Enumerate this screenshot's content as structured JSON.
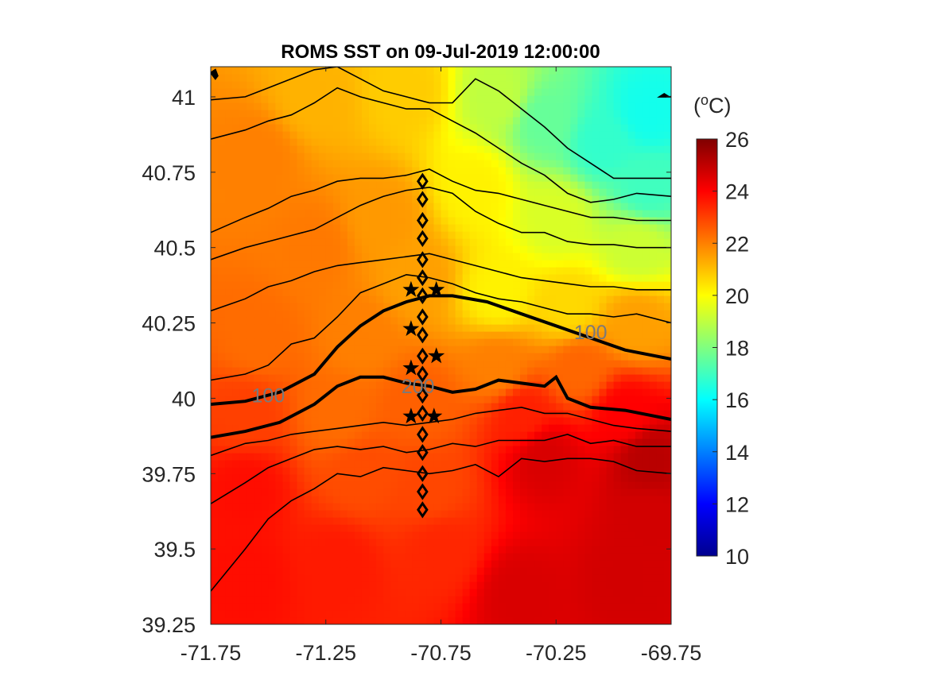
{
  "chart_data": {
    "type": "heatmap",
    "title": "ROMS SST on 09-Jul-2019 12:00:00",
    "xlabel": "",
    "ylabel": "",
    "xlim": [
      -71.75,
      -69.75
    ],
    "ylim": [
      39.25,
      41.1
    ],
    "x_ticks": [
      -71.75,
      -71.25,
      -70.75,
      -70.25,
      -69.75
    ],
    "x_tick_labels": [
      "-71.75",
      "-71.25",
      "-70.75",
      "-70.25",
      "-69.75"
    ],
    "y_ticks": [
      39.25,
      39.5,
      39.75,
      40,
      40.25,
      40.5,
      40.75,
      41
    ],
    "y_tick_labels": [
      "39.25",
      "39.5",
      "39.75",
      "40",
      "40.25",
      "40.5",
      "40.75",
      "41"
    ],
    "colorbar": {
      "label": "(oC)",
      "label_base": "(",
      "label_sup": "o",
      "label_unit": "C)",
      "range": [
        10,
        26
      ],
      "ticks": [
        10,
        12,
        14,
        16,
        18,
        20,
        22,
        24,
        26
      ],
      "tick_labels": [
        "10",
        "12",
        "14",
        "16",
        "18",
        "20",
        "22",
        "24",
        "26"
      ],
      "colormap": "jet"
    },
    "bathymetry_contours": [
      {
        "label": "100",
        "lon": [
          -71.75,
          -71.6,
          -71.45,
          -71.3,
          -71.2,
          -71.1,
          -71.0,
          -70.9,
          -70.8,
          -70.7,
          -70.55,
          -70.4,
          -70.25,
          -70.1,
          -69.95,
          -69.75
        ],
        "lat": [
          39.98,
          39.99,
          40.02,
          40.08,
          40.17,
          40.24,
          40.29,
          40.32,
          40.34,
          40.34,
          40.32,
          40.28,
          40.24,
          40.2,
          40.16,
          40.13
        ]
      },
      {
        "label": "200",
        "lon": [
          -71.75,
          -71.6,
          -71.45,
          -71.3,
          -71.2,
          -71.1,
          -71.0,
          -70.9,
          -70.8,
          -70.7,
          -70.6,
          -70.5,
          -70.4,
          -70.3,
          -70.25,
          -70.2,
          -70.1,
          -69.95,
          -69.75
        ],
        "lat": [
          39.87,
          39.89,
          39.92,
          39.98,
          40.04,
          40.07,
          40.07,
          40.05,
          40.04,
          40.02,
          40.03,
          40.06,
          40.05,
          40.04,
          40.07,
          40.0,
          39.97,
          39.96,
          39.93
        ]
      }
    ],
    "contour_labels": [
      {
        "text": "100",
        "lon": -71.5,
        "lat": 40.01
      },
      {
        "text": "200",
        "lon": -70.85,
        "lat": 40.04
      },
      {
        "text": "100",
        "lon": -70.1,
        "lat": 40.22
      }
    ],
    "other_isobaths": [
      {
        "lon": [
          -71.75,
          -71.6,
          -71.5,
          -71.4,
          -71.3,
          -71.2,
          -71.1,
          -71.0,
          -70.9,
          -70.8,
          -70.7,
          -70.6,
          -70.5,
          -70.4,
          -70.3,
          -70.2,
          -70.1,
          -70.0,
          -69.9,
          -69.75
        ],
        "lat": [
          39.36,
          39.5,
          39.6,
          39.66,
          39.7,
          39.75,
          39.74,
          39.77,
          39.76,
          39.75,
          39.76,
          39.78,
          39.74,
          39.8,
          39.79,
          39.8,
          39.8,
          39.79,
          39.76,
          39.75
        ]
      },
      {
        "lon": [
          -71.75,
          -71.6,
          -71.5,
          -71.4,
          -71.3,
          -71.2,
          -71.1,
          -71.0,
          -70.9,
          -70.8,
          -70.7,
          -70.6,
          -70.5,
          -70.4,
          -70.3,
          -70.2,
          -70.1,
          -70.0,
          -69.9,
          -69.75
        ],
        "lat": [
          39.65,
          39.72,
          39.77,
          39.8,
          39.83,
          39.84,
          39.83,
          39.84,
          39.82,
          39.83,
          39.85,
          39.84,
          39.86,
          39.86,
          39.86,
          39.88,
          39.85,
          39.86,
          39.84,
          39.84
        ]
      },
      {
        "lon": [
          -71.75,
          -71.6,
          -71.5,
          -71.4,
          -71.3,
          -71.2,
          -71.1,
          -71.0,
          -70.9,
          -70.8,
          -70.7,
          -70.6,
          -70.5,
          -70.4,
          -70.3,
          -70.2,
          -70.1,
          -70.0,
          -69.9,
          -69.75
        ],
        "lat": [
          39.81,
          39.85,
          39.86,
          39.88,
          39.89,
          39.9,
          39.91,
          39.92,
          39.91,
          39.92,
          39.93,
          39.95,
          39.96,
          39.97,
          39.95,
          39.95,
          39.93,
          39.91,
          39.9,
          39.89
        ]
      },
      {
        "lon": [
          -71.75,
          -71.6,
          -71.5,
          -71.4,
          -71.3,
          -71.2,
          -71.1,
          -71.0,
          -70.9,
          -70.8,
          -70.7,
          -70.6,
          -70.5,
          -70.4,
          -70.3,
          -70.2,
          -70.1,
          -70.0,
          -69.9,
          -69.75
        ],
        "lat": [
          40.06,
          40.08,
          40.11,
          40.18,
          40.2,
          40.27,
          40.35,
          40.38,
          40.41,
          40.4,
          40.38,
          40.35,
          40.33,
          40.32,
          40.3,
          40.28,
          40.28,
          40.27,
          40.28,
          40.25
        ]
      },
      {
        "lon": [
          -71.75,
          -71.6,
          -71.5,
          -71.4,
          -71.3,
          -71.2,
          -71.1,
          -71.0,
          -70.9,
          -70.8,
          -70.7,
          -70.6,
          -70.5,
          -70.4,
          -70.3,
          -70.2,
          -70.1,
          -70.0,
          -69.9,
          -69.75
        ],
        "lat": [
          40.29,
          40.33,
          40.37,
          40.39,
          40.42,
          40.44,
          40.45,
          40.46,
          40.47,
          40.48,
          40.46,
          40.44,
          40.42,
          40.4,
          40.39,
          40.38,
          40.37,
          40.37,
          40.36,
          40.36
        ]
      },
      {
        "lon": [
          -71.75,
          -71.6,
          -71.5,
          -71.4,
          -71.3,
          -71.2,
          -71.1,
          -71.0,
          -70.9,
          -70.8,
          -70.7,
          -70.6,
          -70.5,
          -70.4,
          -70.3,
          -70.2,
          -70.1,
          -70.0,
          -69.9,
          -69.75
        ],
        "lat": [
          40.46,
          40.5,
          40.52,
          40.54,
          40.56,
          40.6,
          40.64,
          40.67,
          40.69,
          40.7,
          40.68,
          40.62,
          40.58,
          40.55,
          40.55,
          40.52,
          40.51,
          40.51,
          40.5,
          40.5
        ]
      },
      {
        "lon": [
          -71.75,
          -71.6,
          -71.5,
          -71.4,
          -71.3,
          -71.2,
          -71.1,
          -71.0,
          -70.9,
          -70.8,
          -70.7,
          -70.6,
          -70.5,
          -70.4,
          -70.3,
          -70.2,
          -70.1,
          -70.0,
          -69.9,
          -69.75
        ],
        "lat": [
          40.55,
          40.6,
          40.63,
          40.67,
          40.69,
          40.72,
          40.73,
          40.73,
          40.74,
          40.76,
          40.72,
          40.69,
          40.68,
          40.66,
          40.64,
          40.62,
          40.6,
          40.6,
          40.59,
          40.59
        ]
      },
      {
        "lon": [
          -71.75,
          -71.6,
          -71.5,
          -71.4,
          -71.3,
          -71.2,
          -71.1,
          -71.0,
          -70.9,
          -70.8,
          -70.7,
          -70.6,
          -70.5,
          -70.4,
          -70.3,
          -70.2,
          -70.1,
          -70.0,
          -69.9,
          -69.75
        ],
        "lat": [
          40.86,
          40.89,
          40.92,
          40.94,
          40.98,
          41.03,
          41.0,
          40.98,
          40.96,
          40.96,
          40.92,
          40.88,
          40.83,
          40.78,
          40.74,
          40.68,
          40.65,
          40.66,
          40.68,
          40.67
        ]
      },
      {
        "lon": [
          -71.75,
          -71.6,
          -71.5,
          -71.4,
          -71.3,
          -71.2,
          -71.1,
          -71.0,
          -70.9,
          -70.8,
          -70.7,
          -70.6,
          -70.5,
          -70.4,
          -70.3,
          -70.2,
          -70.1,
          -70.0,
          -69.9,
          -69.75
        ],
        "lat": [
          40.99,
          41.0,
          41.03,
          41.06,
          41.09,
          41.1,
          41.06,
          41.02,
          41.0,
          40.98,
          40.98,
          41.06,
          41.02,
          40.96,
          40.9,
          40.83,
          40.78,
          40.73,
          40.73,
          40.73
        ]
      }
    ],
    "coastlines": [
      {
        "lon": [
          -71.75,
          -71.73,
          -71.72,
          -71.73
        ],
        "lat": [
          41.08,
          41.09,
          41.07,
          41.06
        ]
      },
      {
        "lon": [
          -69.8,
          -69.78,
          -69.76,
          -69.75
        ],
        "lat": [
          41.0,
          41.01,
          41.0,
          41.0
        ]
      }
    ],
    "stations": {
      "diamond_lon": -70.83,
      "diamond_lat": [
        40.72,
        40.66,
        40.59,
        40.53,
        40.46,
        40.4,
        40.34,
        40.27,
        40.21,
        40.14,
        40.08,
        40.01,
        39.95,
        39.88,
        39.82,
        39.75,
        39.69,
        39.63
      ],
      "stars": [
        {
          "lon": -70.88,
          "lat": 40.36
        },
        {
          "lon": -70.77,
          "lat": 40.36
        },
        {
          "lon": -70.88,
          "lat": 40.23
        },
        {
          "lon": -70.77,
          "lat": 40.14
        },
        {
          "lon": -70.88,
          "lat": 40.1
        },
        {
          "lon": -70.88,
          "lat": 39.94
        },
        {
          "lon": -70.78,
          "lat": 39.94
        }
      ]
    },
    "sst_anchor_points": [
      {
        "lon": -69.85,
        "lat": 40.95,
        "sst": 16.3
      },
      {
        "lon": -69.85,
        "lat": 40.7,
        "sst": 17.0
      },
      {
        "lon": -70.05,
        "lat": 40.85,
        "sst": 16.8
      },
      {
        "lon": -70.3,
        "lat": 40.92,
        "sst": 17.6
      },
      {
        "lon": -70.25,
        "lat": 40.6,
        "sst": 19.4
      },
      {
        "lon": -69.9,
        "lat": 40.5,
        "sst": 19.2
      },
      {
        "lon": -70.5,
        "lat": 41.0,
        "sst": 19.0
      },
      {
        "lon": -70.6,
        "lat": 40.7,
        "sst": 20.2
      },
      {
        "lon": -70.9,
        "lat": 41.02,
        "sst": 20.8
      },
      {
        "lon": -71.3,
        "lat": 41.0,
        "sst": 21.2
      },
      {
        "lon": -71.55,
        "lat": 40.8,
        "sst": 22.0
      },
      {
        "lon": -71.3,
        "lat": 40.5,
        "sst": 22.1
      },
      {
        "lon": -71.0,
        "lat": 40.6,
        "sst": 21.6
      },
      {
        "lon": -70.85,
        "lat": 40.4,
        "sst": 21.5
      },
      {
        "lon": -70.5,
        "lat": 40.35,
        "sst": 20.2
      },
      {
        "lon": -70.2,
        "lat": 40.3,
        "sst": 20.6
      },
      {
        "lon": -69.9,
        "lat": 40.25,
        "sst": 21.5
      },
      {
        "lon": -71.55,
        "lat": 40.2,
        "sst": 22.3
      },
      {
        "lon": -71.1,
        "lat": 40.2,
        "sst": 22.0
      },
      {
        "lon": -70.5,
        "lat": 40.1,
        "sst": 22.0
      },
      {
        "lon": -70.15,
        "lat": 40.1,
        "sst": 22.4
      },
      {
        "lon": -71.6,
        "lat": 39.95,
        "sst": 23.0
      },
      {
        "lon": -71.2,
        "lat": 39.95,
        "sst": 22.3
      },
      {
        "lon": -70.85,
        "lat": 39.98,
        "sst": 22.5
      },
      {
        "lon": -70.4,
        "lat": 39.95,
        "sst": 23.5
      },
      {
        "lon": -69.95,
        "lat": 39.95,
        "sst": 24.0
      },
      {
        "lon": -71.6,
        "lat": 39.7,
        "sst": 23.8
      },
      {
        "lon": -71.1,
        "lat": 39.75,
        "sst": 22.8
      },
      {
        "lon": -70.8,
        "lat": 39.7,
        "sst": 22.9
      },
      {
        "lon": -70.3,
        "lat": 39.8,
        "sst": 24.6
      },
      {
        "lon": -69.85,
        "lat": 39.8,
        "sst": 25.1
      },
      {
        "lon": -71.6,
        "lat": 39.4,
        "sst": 23.8
      },
      {
        "lon": -71.2,
        "lat": 39.45,
        "sst": 23.6
      },
      {
        "lon": -70.75,
        "lat": 39.5,
        "sst": 23.4
      },
      {
        "lon": -70.4,
        "lat": 39.35,
        "sst": 24.6
      },
      {
        "lon": -69.95,
        "lat": 39.4,
        "sst": 24.7
      },
      {
        "lon": -69.85,
        "lat": 39.6,
        "sst": 24.7
      }
    ]
  }
}
